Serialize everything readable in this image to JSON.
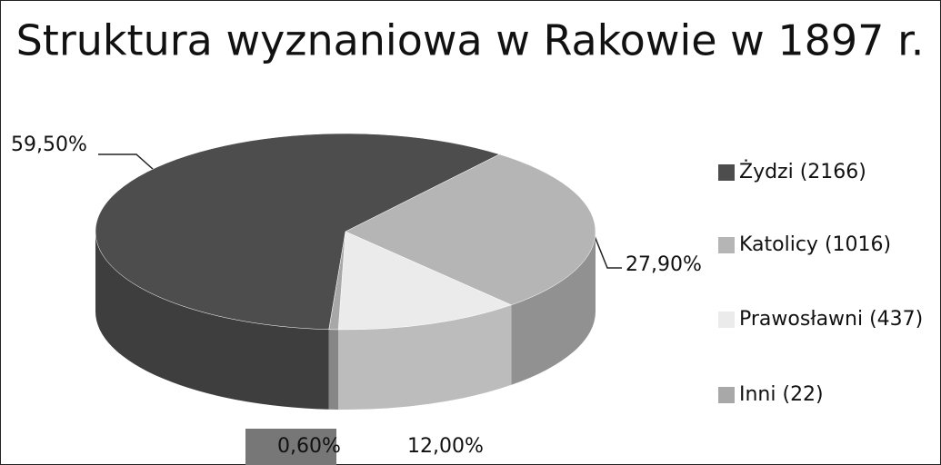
{
  "chart_data": {
    "type": "pie",
    "title": "Struktura wyznaniowa w Rakowie w 1897 r.",
    "categories": [
      "Żydzi (2166)",
      "Katolicy (1016)",
      "Prawosławni (437)",
      "Inni (22)"
    ],
    "values": [
      59.5,
      27.9,
      12.0,
      0.6
    ],
    "value_labels": [
      "59,50%",
      "27,90%",
      "12,00%",
      "0,60%"
    ],
    "colors": [
      "#4d4d4d",
      "#b5b5b5",
      "#ebebeb",
      "#a8a8a8"
    ],
    "legend": "right"
  }
}
